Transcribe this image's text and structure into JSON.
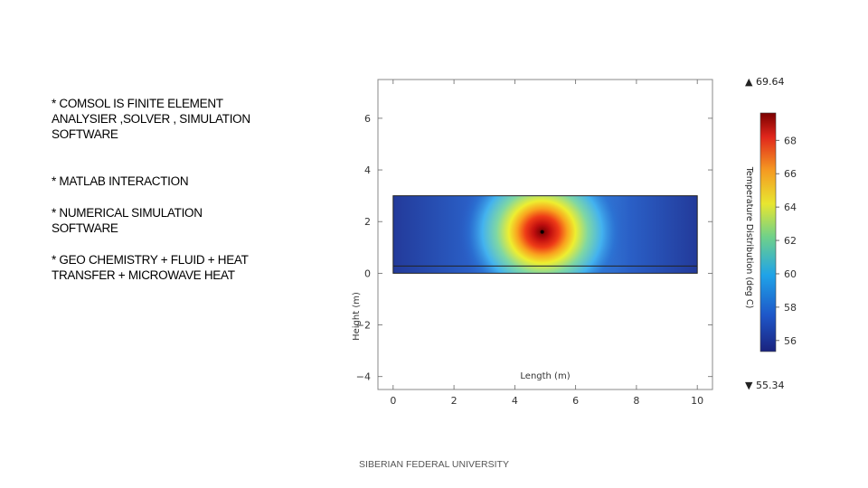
{
  "slide": {
    "bullets": [
      "* COMSOL IS FINITE ELEMENT\nANALYSIER ,SOLVER , SIMULATION\nSOFTWARE",
      "* MATLAB INTERACTION",
      "* NUMERICAL SIMULATION\nSOFTWARE",
      "* GEO CHEMISTRY + FLUID + HEAT\nTRANSFER + MICROWAVE HEAT"
    ],
    "footer": "SIBERIAN FEDERAL UNIVERSITY"
  },
  "figure": {
    "xlabel": "Length (m)",
    "ylabel": "Height (m)",
    "x_ticks": [
      "0",
      "2",
      "4",
      "6",
      "8",
      "10"
    ],
    "y_ticks": [
      "6",
      "4",
      "2",
      "0",
      "−2",
      "−4"
    ],
    "colorbar_label": "Temperature Distribution (deg C)",
    "colorbar_ticks": [
      "68",
      "66",
      "64",
      "62",
      "60",
      "58",
      "56"
    ],
    "max_label": "▲ 69.64",
    "min_label": "▼ 55.34",
    "x_range": [
      -0.5,
      10.5
    ],
    "y_range": [
      -4.5,
      7.5
    ],
    "domain": {
      "x": [
        0,
        10
      ],
      "y": [
        0,
        3
      ]
    },
    "hotspot": {
      "x": 4.9,
      "y": 1.6
    },
    "colors": {
      "hot": "#8b0000",
      "mid": "#ffff00",
      "cool": "#2050c0",
      "cold": "#1a237e"
    }
  }
}
